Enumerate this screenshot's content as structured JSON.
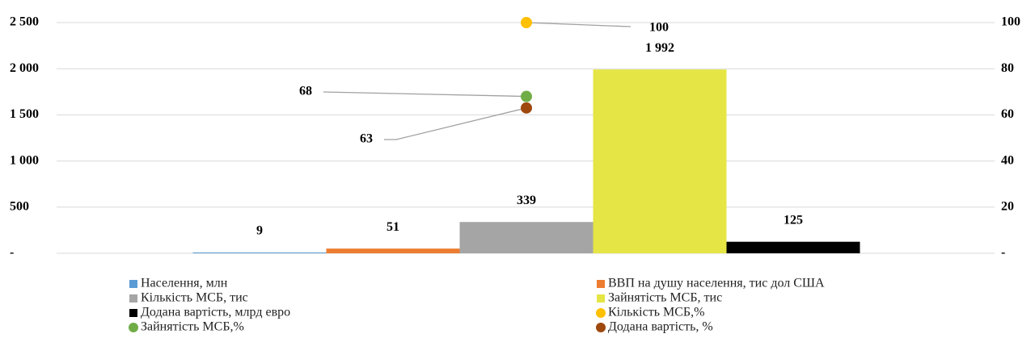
{
  "chart_data": {
    "type": "bar",
    "ylim": [
      0,
      2500
    ],
    "yticks": [
      {
        "value": 0,
        "label": "-"
      },
      500,
      {
        "value": 1000,
        "label": "1 000"
      },
      {
        "value": 1500,
        "label": "1 500"
      },
      {
        "value": 2000,
        "label": "2 000"
      },
      {
        "value": 2500,
        "label": "2 500"
      }
    ],
    "y2lim": [
      0,
      100
    ],
    "y2ticks": [
      {
        "value": 0,
        "label": "-"
      },
      20,
      40,
      60,
      80,
      100
    ],
    "grid": true,
    "legend": "bottom",
    "series": [
      {
        "name": "Населення, млн",
        "color": "#5b9bd5",
        "type": "bar",
        "values": [
          9
        ]
      },
      {
        "name": "ВВП на душу населення, тис дол США",
        "color": "#ed7d31",
        "type": "bar",
        "values": [
          51
        ]
      },
      {
        "name": "Кількість МСБ, тис",
        "color": "#a5a5a5",
        "type": "bar",
        "values": [
          339
        ]
      },
      {
        "name": "Зайнятість МСБ, тис",
        "color": "#e5e545",
        "type": "bar",
        "values": [
          1992
        ],
        "value_labels": [
          "1 992"
        ]
      },
      {
        "name": "Додана вартість, млрд евро",
        "color": "#000000",
        "type": "bar",
        "values": [
          125
        ]
      },
      {
        "name": "Кількість МСБ,%",
        "color": "#ffc000",
        "type": "scatter",
        "axis": "y2",
        "values": [
          100
        ]
      },
      {
        "name": "Зайнятість  МСБ,%",
        "color": "#70ad47",
        "type": "scatter",
        "axis": "y2",
        "values": [
          68
        ]
      },
      {
        "name": "Додана вартість, %",
        "color": "#9e480e",
        "type": "scatter",
        "axis": "y2",
        "values": [
          63
        ]
      }
    ]
  }
}
